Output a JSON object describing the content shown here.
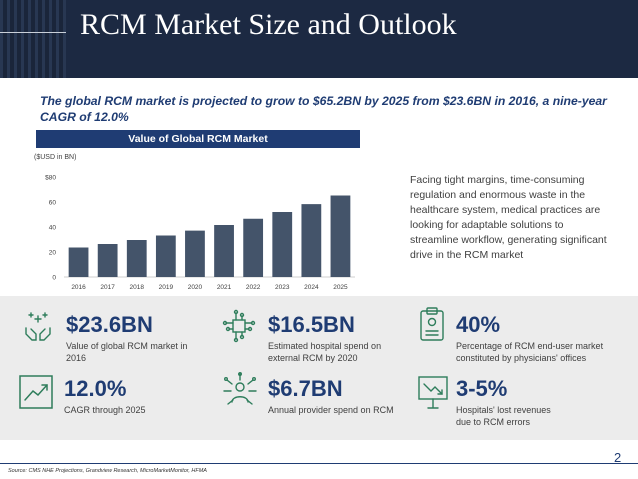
{
  "slide": {
    "title": "RCM Market Size and Outlook",
    "headline": "The global RCM market is projected to grow to $65.2BN by 2025 from $23.6BN in 2016, a nine-year CAGR of 12.0%",
    "side_text": "Facing tight margins, time-consuming regulation and enormous waste in the healthcare system, medical practices are looking for adaptable solutions to streamline workflow, generating significant drive in the RCM market",
    "source": "Source: CMS NHE Projections, Grandview Research, MicroMarketMonitor, HFMA",
    "page_number": "2"
  },
  "chart_data": {
    "type": "bar",
    "title": "Value of Global RCM Market",
    "unit_label": "($USD in BN)",
    "categories": [
      "2016",
      "2017",
      "2018",
      "2019",
      "2020",
      "2021",
      "2022",
      "2023",
      "2024",
      "2025"
    ],
    "values": [
      23.6,
      26.4,
      29.6,
      33.2,
      37.1,
      41.6,
      46.6,
      52.0,
      58.3,
      65.2
    ],
    "ylim": [
      0,
      80
    ],
    "yticks": [
      "$80",
      "60",
      "40",
      "20",
      "0"
    ],
    "ytick_values": [
      80,
      60,
      40,
      20,
      0
    ],
    "bar_color": "#44546a",
    "grid": false
  },
  "stats": [
    {
      "value": "$23.6BN",
      "desc": "Value of global RCM market in 2016",
      "icon": "hands-sparkle-icon"
    },
    {
      "value": "$16.5BN",
      "desc": "Estimated hospital spend on external RCM by 2020",
      "icon": "circuit-chip-icon"
    },
    {
      "value": "40%",
      "desc": "Percentage of RCM end-user market constituted by physicians' offices",
      "icon": "clipboard-icon"
    },
    {
      "value": "12.0%",
      "desc": "CAGR through 2025",
      "icon": "trend-up-icon"
    },
    {
      "value": "$6.7BN",
      "desc": "Annual provider spend on RCM",
      "icon": "person-network-icon"
    },
    {
      "value": "3-5%",
      "desc": "Hospitals' lost revenues due to RCM errors",
      "icon": "trend-down-sign-icon"
    }
  ],
  "colors": {
    "navy": "#1f3c73",
    "icon_green": "#2e7d5b",
    "bar": "#44546a",
    "band": "#ececec"
  }
}
